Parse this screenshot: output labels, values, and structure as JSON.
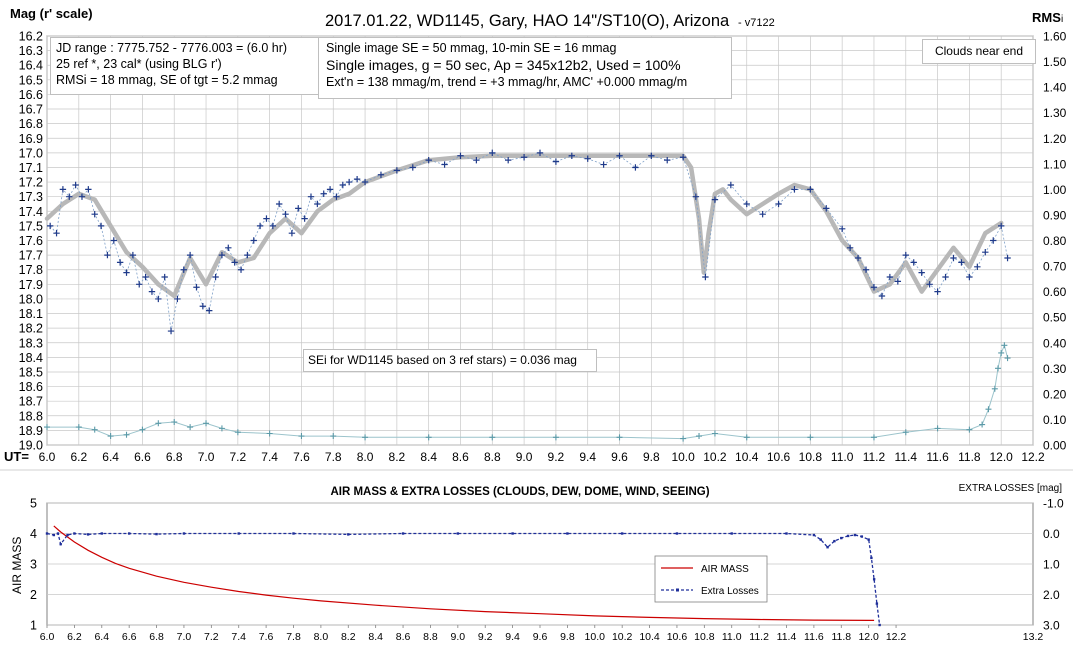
{
  "chart_data": [
    {
      "type": "scatter",
      "title": "2017.01.22,  WD1145, Gary, HAO  14\"/ST10(O),  Arizona",
      "version": "- v7122",
      "ylabel_left": "Mag (r' scale)",
      "ylabel_right": "RMS",
      "ylabel_right_sub": "i",
      "xlabel": "UT=",
      "xlim": [
        6.0,
        12.2
      ],
      "ylim_left": [
        16.2,
        19.0
      ],
      "ylim_right": [
        0.0,
        1.6
      ],
      "x_ticks": [
        "6.0",
        "6.2",
        "6.4",
        "6.6",
        "6.8",
        "7.0",
        "7.2",
        "7.4",
        "7.6",
        "7.8",
        "8.0",
        "8.2",
        "8.4",
        "8.6",
        "8.8",
        "9.0",
        "9.2",
        "9.4",
        "9.6",
        "9.8",
        "10.0",
        "10.2",
        "10.4",
        "10.6",
        "10.8",
        "11.0",
        "11.2",
        "11.4",
        "11.6",
        "11.8",
        "12.0",
        "12.2"
      ],
      "y_ticks_left": [
        "16.2",
        "16.3",
        "16.4",
        "16.5",
        "16.6",
        "16.7",
        "16.8",
        "16.9",
        "17.0",
        "17.1",
        "17.2",
        "17.3",
        "17.4",
        "17.5",
        "17.6",
        "17.7",
        "17.8",
        "17.9",
        "18.0",
        "18.1",
        "18.2",
        "18.3",
        "18.4",
        "18.5",
        "18.6",
        "18.7",
        "18.8",
        "18.9",
        "19.0"
      ],
      "y_ticks_right": [
        "1.60",
        "1.50",
        "1.40",
        "1.30",
        "1.20",
        "1.10",
        "1.00",
        "0.90",
        "0.80",
        "0.70",
        "0.60",
        "0.50",
        "0.40",
        "0.30",
        "0.20",
        "0.10",
        "0.00"
      ],
      "grid": true,
      "info_box_1": [
        "JD range  : 7775.752  - 7776.003  = (6.0 hr)",
        "25 ref *, 23 cal* (using BLG r')",
        "RMSi = 18 mmag, SE of tgt = 5.2 mmag"
      ],
      "info_box_2": [
        "Single image SE = 50 mmag, 10-min SE = 16 mmag",
        "Single images, g = 50 sec, Ap = 345x12b2, Used = 100%",
        "Ext'n = 138  mmag/m, trend = +3 mmag/hr, AMC' +0.000  mmag/m"
      ],
      "note_box": "Clouds near end",
      "sei_box": "SEi for WD1145 based on 3 ref stars) = 0.036 mag",
      "series": [
        {
          "name": "",
          "role": "smoothed magnitude",
          "color": "#b8b8b8",
          "x": [
            6.0,
            6.1,
            6.2,
            6.3,
            6.4,
            6.5,
            6.6,
            6.7,
            6.8,
            6.9,
            7.0,
            7.1,
            7.2,
            7.3,
            7.4,
            7.5,
            7.6,
            7.7,
            7.8,
            7.9,
            8.0,
            8.2,
            8.4,
            8.6,
            8.8,
            9.0,
            9.2,
            9.4,
            9.6,
            9.8,
            10.0,
            10.05,
            10.1,
            10.13,
            10.16,
            10.2,
            10.25,
            10.3,
            10.4,
            10.5,
            10.6,
            10.7,
            10.8,
            10.9,
            11.0,
            11.1,
            11.2,
            11.3,
            11.4,
            11.5,
            11.6,
            11.7,
            11.8,
            11.9,
            12.0
          ],
          "y": [
            17.45,
            17.35,
            17.28,
            17.32,
            17.5,
            17.68,
            17.78,
            17.9,
            17.98,
            17.72,
            17.9,
            17.68,
            17.75,
            17.72,
            17.55,
            17.45,
            17.55,
            17.4,
            17.32,
            17.28,
            17.2,
            17.12,
            17.05,
            17.03,
            17.02,
            17.02,
            17.02,
            17.02,
            17.02,
            17.02,
            17.02,
            17.1,
            17.45,
            17.82,
            17.55,
            17.28,
            17.25,
            17.32,
            17.42,
            17.35,
            17.28,
            17.22,
            17.25,
            17.4,
            17.6,
            17.72,
            17.95,
            17.9,
            17.75,
            17.95,
            17.8,
            17.65,
            17.78,
            17.55,
            17.48
          ]
        },
        {
          "name": "",
          "role": "individual magnitudes",
          "color": "#1f3a8a",
          "x": [
            6.02,
            6.06,
            6.1,
            6.14,
            6.18,
            6.22,
            6.26,
            6.3,
            6.34,
            6.38,
            6.42,
            6.46,
            6.5,
            6.54,
            6.58,
            6.62,
            6.66,
            6.7,
            6.74,
            6.78,
            6.82,
            6.86,
            6.9,
            6.94,
            6.98,
            7.02,
            7.06,
            7.1,
            7.14,
            7.18,
            7.22,
            7.26,
            7.3,
            7.34,
            7.38,
            7.42,
            7.46,
            7.5,
            7.54,
            7.58,
            7.62,
            7.66,
            7.7,
            7.74,
            7.78,
            7.82,
            7.86,
            7.9,
            7.95,
            8.0,
            8.1,
            8.2,
            8.3,
            8.4,
            8.5,
            8.6,
            8.7,
            8.8,
            8.9,
            9.0,
            9.1,
            9.2,
            9.3,
            9.4,
            9.5,
            9.6,
            9.7,
            9.8,
            9.9,
            10.0,
            10.08,
            10.14,
            10.2,
            10.3,
            10.4,
            10.5,
            10.6,
            10.7,
            10.8,
            10.9,
            11.0,
            11.05,
            11.1,
            11.15,
            11.2,
            11.25,
            11.3,
            11.35,
            11.4,
            11.45,
            11.5,
            11.55,
            11.6,
            11.65,
            11.7,
            11.75,
            11.8,
            11.85,
            11.9,
            11.95,
            12.0,
            12.04
          ],
          "y": [
            17.5,
            17.55,
            17.25,
            17.3,
            17.22,
            17.3,
            17.25,
            17.42,
            17.5,
            17.7,
            17.6,
            17.75,
            17.82,
            17.7,
            17.9,
            17.85,
            17.95,
            18.0,
            17.85,
            18.22,
            18.0,
            17.8,
            17.7,
            17.92,
            18.05,
            18.08,
            17.85,
            17.7,
            17.65,
            17.75,
            17.8,
            17.7,
            17.6,
            17.5,
            17.45,
            17.5,
            17.35,
            17.42,
            17.55,
            17.38,
            17.45,
            17.3,
            17.35,
            17.28,
            17.25,
            17.3,
            17.22,
            17.2,
            17.18,
            17.2,
            17.15,
            17.12,
            17.1,
            17.05,
            17.08,
            17.02,
            17.05,
            17.0,
            17.05,
            17.03,
            17.0,
            17.06,
            17.02,
            17.04,
            17.08,
            17.02,
            17.1,
            17.02,
            17.05,
            17.03,
            17.3,
            17.85,
            17.32,
            17.22,
            17.35,
            17.42,
            17.35,
            17.25,
            17.25,
            17.38,
            17.52,
            17.65,
            17.72,
            17.8,
            17.92,
            17.98,
            17.85,
            17.88,
            17.7,
            17.75,
            17.82,
            17.9,
            17.95,
            17.85,
            17.72,
            17.75,
            17.85,
            17.78,
            17.68,
            17.6,
            17.5,
            17.72
          ]
        },
        {
          "name": "",
          "role": "RMSi (right axis)",
          "color": "#5b9aa8",
          "x": [
            6.0,
            6.2,
            6.3,
            6.4,
            6.5,
            6.6,
            6.7,
            6.8,
            6.9,
            7.0,
            7.1,
            7.2,
            7.4,
            7.6,
            7.8,
            8.0,
            8.4,
            8.8,
            9.2,
            9.6,
            10.0,
            10.1,
            10.2,
            10.4,
            10.8,
            11.2,
            11.4,
            11.6,
            11.8,
            11.88,
            11.92,
            11.96,
            11.98,
            12.0,
            12.02,
            12.04
          ],
          "y": [
            0.07,
            0.07,
            0.06,
            0.035,
            0.04,
            0.06,
            0.085,
            0.09,
            0.07,
            0.085,
            0.065,
            0.05,
            0.045,
            0.035,
            0.035,
            0.03,
            0.03,
            0.03,
            0.03,
            0.03,
            0.025,
            0.035,
            0.045,
            0.03,
            0.03,
            0.03,
            0.05,
            0.065,
            0.06,
            0.08,
            0.14,
            0.22,
            0.3,
            0.36,
            0.39,
            0.34
          ]
        }
      ]
    },
    {
      "type": "line",
      "title": "AIR MASS & EXTRA LOSSES (CLOUDS, DEW, DOME, WIND, SEEING)",
      "ylabel_left": "AIR MASS",
      "ylabel_right": "EXTRA LOSSES [mag]",
      "xlim": [
        6.0,
        13.2
      ],
      "ylim_left": [
        1,
        5
      ],
      "ylim_right": [
        -1.0,
        3.0
      ],
      "x_ticks": [
        "6.0",
        "6.2",
        "6.4",
        "6.6",
        "6.8",
        "7.0",
        "7.2",
        "7.4",
        "7.6",
        "7.8",
        "8.0",
        "8.2",
        "8.4",
        "8.6",
        "8.8",
        "9.0",
        "9.2",
        "9.4",
        "9.6",
        "9.8",
        "10.0",
        "10.2",
        "10.4",
        "10.6",
        "10.8",
        "11.0",
        "11.2",
        "11.4",
        "11.6",
        "11.8",
        "12.0",
        "12.2"
      ],
      "x_tick_end": "13.2",
      "y_ticks_left": [
        "5",
        "4",
        "3",
        "2",
        "1"
      ],
      "y_ticks_right": [
        "-1.0",
        "0.0",
        "1.0",
        "2.0",
        "3.0"
      ],
      "legend_position": "right-middle",
      "series": [
        {
          "name": "AIR MASS",
          "color": "#cc0000",
          "x": [
            6.05,
            6.1,
            6.2,
            6.3,
            6.4,
            6.5,
            6.6,
            6.8,
            7.0,
            7.2,
            7.4,
            7.6,
            7.8,
            8.0,
            8.4,
            8.8,
            9.2,
            9.6,
            10.0,
            10.4,
            10.8,
            11.2,
            11.6,
            12.0,
            12.04
          ],
          "y": [
            4.25,
            4.05,
            3.72,
            3.45,
            3.22,
            3.02,
            2.86,
            2.6,
            2.4,
            2.24,
            2.1,
            1.98,
            1.88,
            1.79,
            1.65,
            1.53,
            1.44,
            1.37,
            1.3,
            1.25,
            1.21,
            1.18,
            1.16,
            1.15,
            1.15
          ]
        },
        {
          "name": "Extra Losses",
          "color": "#1f2f9a",
          "x": [
            6.0,
            6.05,
            6.08,
            6.1,
            6.15,
            6.2,
            6.3,
            6.4,
            6.6,
            6.8,
            7.0,
            7.4,
            7.8,
            8.2,
            8.6,
            9.0,
            9.4,
            9.8,
            10.2,
            10.6,
            11.0,
            11.4,
            11.6,
            11.65,
            11.7,
            11.75,
            11.8,
            11.85,
            11.9,
            11.95,
            12.0,
            12.02,
            12.04,
            12.06,
            12.08
          ],
          "y": [
            0.0,
            0.05,
            0.0,
            0.35,
            0.05,
            0.0,
            0.03,
            0.0,
            0.0,
            0.02,
            0.0,
            0.0,
            0.0,
            0.03,
            0.0,
            0.0,
            0.0,
            0.0,
            0.0,
            0.0,
            0.0,
            0.0,
            0.05,
            0.2,
            0.45,
            0.25,
            0.15,
            0.08,
            0.05,
            0.1,
            0.2,
            0.8,
            1.5,
            2.3,
            3.0
          ]
        }
      ]
    }
  ]
}
